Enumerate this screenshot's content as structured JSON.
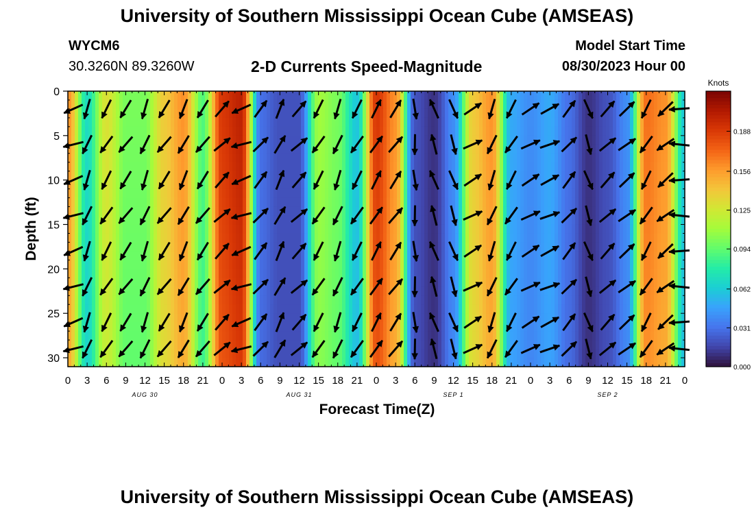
{
  "header": {
    "title": "University of Southern Mississippi Ocean Cube (AMSEAS)",
    "station": "WYCM6",
    "coords": "30.3260N  89.3260W",
    "plot_title": "2-D Currents Speed-Magnitude",
    "model_label": "Model Start Time",
    "model_time": "08/30/2023 Hour 00"
  },
  "footer": {
    "title": "University of Southern Mississippi Ocean Cube (AMSEAS)"
  },
  "chart_data": {
    "type": "heatmap",
    "title": "2-D Currents Speed-Magnitude",
    "xlabel": "Forecast Time(Z)",
    "ylabel": "Depth (ft)",
    "xlim": [
      0,
      96
    ],
    "ylim": [
      31,
      0
    ],
    "x_tick_labels": [
      "0",
      "3",
      "6",
      "9",
      "12",
      "15",
      "18",
      "21",
      "0",
      "3",
      "6",
      "9",
      "12",
      "15",
      "18",
      "21",
      "0",
      "3",
      "6",
      "9",
      "12",
      "15",
      "18",
      "21",
      "0",
      "3",
      "6",
      "9",
      "12",
      "15",
      "18",
      "21",
      "0"
    ],
    "y_ticks": [
      0,
      5,
      10,
      15,
      20,
      25,
      30
    ],
    "day_labels": [
      {
        "label": "AUG 30",
        "hour": 12
      },
      {
        "label": "AUG 31",
        "hour": 36
      },
      {
        "label": "SEP 1",
        "hour": 60
      },
      {
        "label": "SEP 2",
        "hour": 84
      }
    ],
    "colorbar": {
      "label": "Knots",
      "ticks": [
        "0.000",
        "0.031",
        "0.062",
        "0.094",
        "0.125",
        "0.156",
        "0.188"
      ],
      "min": 0.0,
      "max": 0.22,
      "colors": [
        "#30123b",
        "#4145ab",
        "#4675ed",
        "#39a2fc",
        "#1bcfd4",
        "#24eca6",
        "#61fc6c",
        "#a4fc3b",
        "#d1e834",
        "#f3c63a",
        "#fe9b2d",
        "#f36315",
        "#d93806",
        "#b11901",
        "#7a0403"
      ]
    },
    "hours": [
      0,
      3,
      6,
      9,
      12,
      15,
      18,
      21,
      24,
      27,
      30,
      33,
      36,
      39,
      42,
      45,
      48,
      51,
      54,
      57,
      60,
      63,
      66,
      69,
      72,
      75,
      78,
      81,
      84,
      87,
      90,
      93,
      96
    ],
    "speed_by_hour": [
      0.16,
      0.07,
      0.13,
      0.1,
      0.1,
      0.14,
      0.16,
      0.09,
      0.19,
      0.2,
      0.03,
      0.02,
      0.02,
      0.11,
      0.1,
      0.06,
      0.19,
      0.16,
      0.02,
      0.01,
      0.04,
      0.14,
      0.16,
      0.05,
      0.04,
      0.05,
      0.03,
      0.01,
      0.02,
      0.04,
      0.17,
      0.16,
      0.06
    ],
    "arrow_directions_deg": [
      250,
      200,
      210,
      215,
      200,
      215,
      205,
      215,
      45,
      250,
      40,
      25,
      45,
      210,
      200,
      210,
      30,
      35,
      175,
      340,
      160,
      60,
      200,
      210,
      60,
      65,
      40,
      160,
      45,
      50,
      210,
      230,
      270
    ]
  }
}
